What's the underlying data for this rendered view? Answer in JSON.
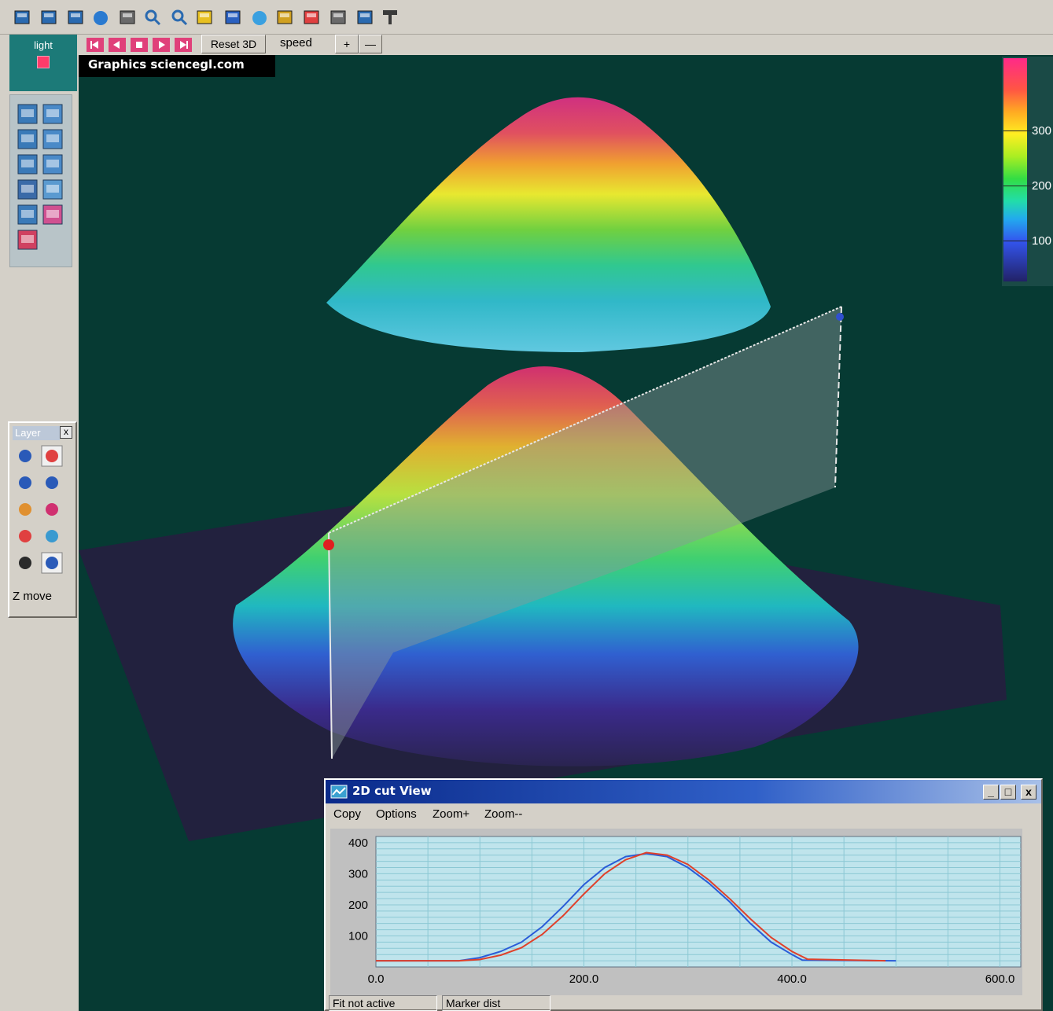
{
  "toolbar": {
    "icons": [
      "open-folder-icon",
      "save-disk-icon",
      "print-icon",
      "sphere-icon",
      "camera-icon",
      "zoom-in-icon",
      "zoom-out-icon",
      "surface-map-icon",
      "surface-map-2-icon",
      "globe-icon",
      "columns-icon",
      "bars-icon",
      "axis-icon",
      "chart-window-icon",
      "lamp-icon"
    ]
  },
  "light_panel": {
    "label": "light"
  },
  "animation": {
    "buttons": [
      "first-frame-icon",
      "prev-frame-icon",
      "stop-icon",
      "play-icon",
      "last-frame-icon"
    ]
  },
  "reset_3d_label": "Reset 3D",
  "speed_label": "speed",
  "speed_plus": "+",
  "speed_minus": "—",
  "credit": "Graphics sciencegl.com",
  "colorbar": {
    "labels": [
      "300",
      "200",
      "100"
    ]
  },
  "layer_panel": {
    "title": "Layer",
    "close": "x",
    "mode_label": "Z move"
  },
  "cut_window": {
    "title": "2D cut View",
    "menu": [
      "Copy",
      "Options",
      "Zoom+",
      "Zoom--"
    ],
    "status": [
      "Fit not active",
      "Marker dist"
    ],
    "minimize": "_",
    "maximize": "□",
    "close": "x"
  },
  "chart_data": {
    "type": "line",
    "title": "",
    "xlabel": "",
    "ylabel": "",
    "xlim": [
      0,
      620
    ],
    "ylim": [
      0,
      420
    ],
    "x_ticks": [
      "0.0",
      "200.0",
      "400.0",
      "600.0"
    ],
    "y_ticks": [
      "100",
      "200",
      "300",
      "400"
    ],
    "grid": true,
    "series": [
      {
        "color": "#2a5cd8",
        "x": [
          0,
          80,
          100,
          120,
          140,
          160,
          180,
          200,
          220,
          240,
          260,
          280,
          300,
          320,
          340,
          360,
          380,
          400,
          410,
          500
        ],
        "y": [
          20,
          20,
          30,
          50,
          80,
          130,
          195,
          265,
          320,
          355,
          365,
          355,
          320,
          270,
          210,
          140,
          80,
          40,
          22,
          20
        ]
      },
      {
        "color": "#e0402a",
        "x": [
          0,
          80,
          100,
          120,
          140,
          160,
          180,
          200,
          220,
          240,
          260,
          280,
          300,
          320,
          340,
          360,
          380,
          400,
          415,
          490
        ],
        "y": [
          20,
          20,
          24,
          38,
          62,
          105,
          165,
          235,
          300,
          345,
          368,
          360,
          330,
          280,
          220,
          155,
          95,
          50,
          25,
          20
        ]
      }
    ]
  }
}
